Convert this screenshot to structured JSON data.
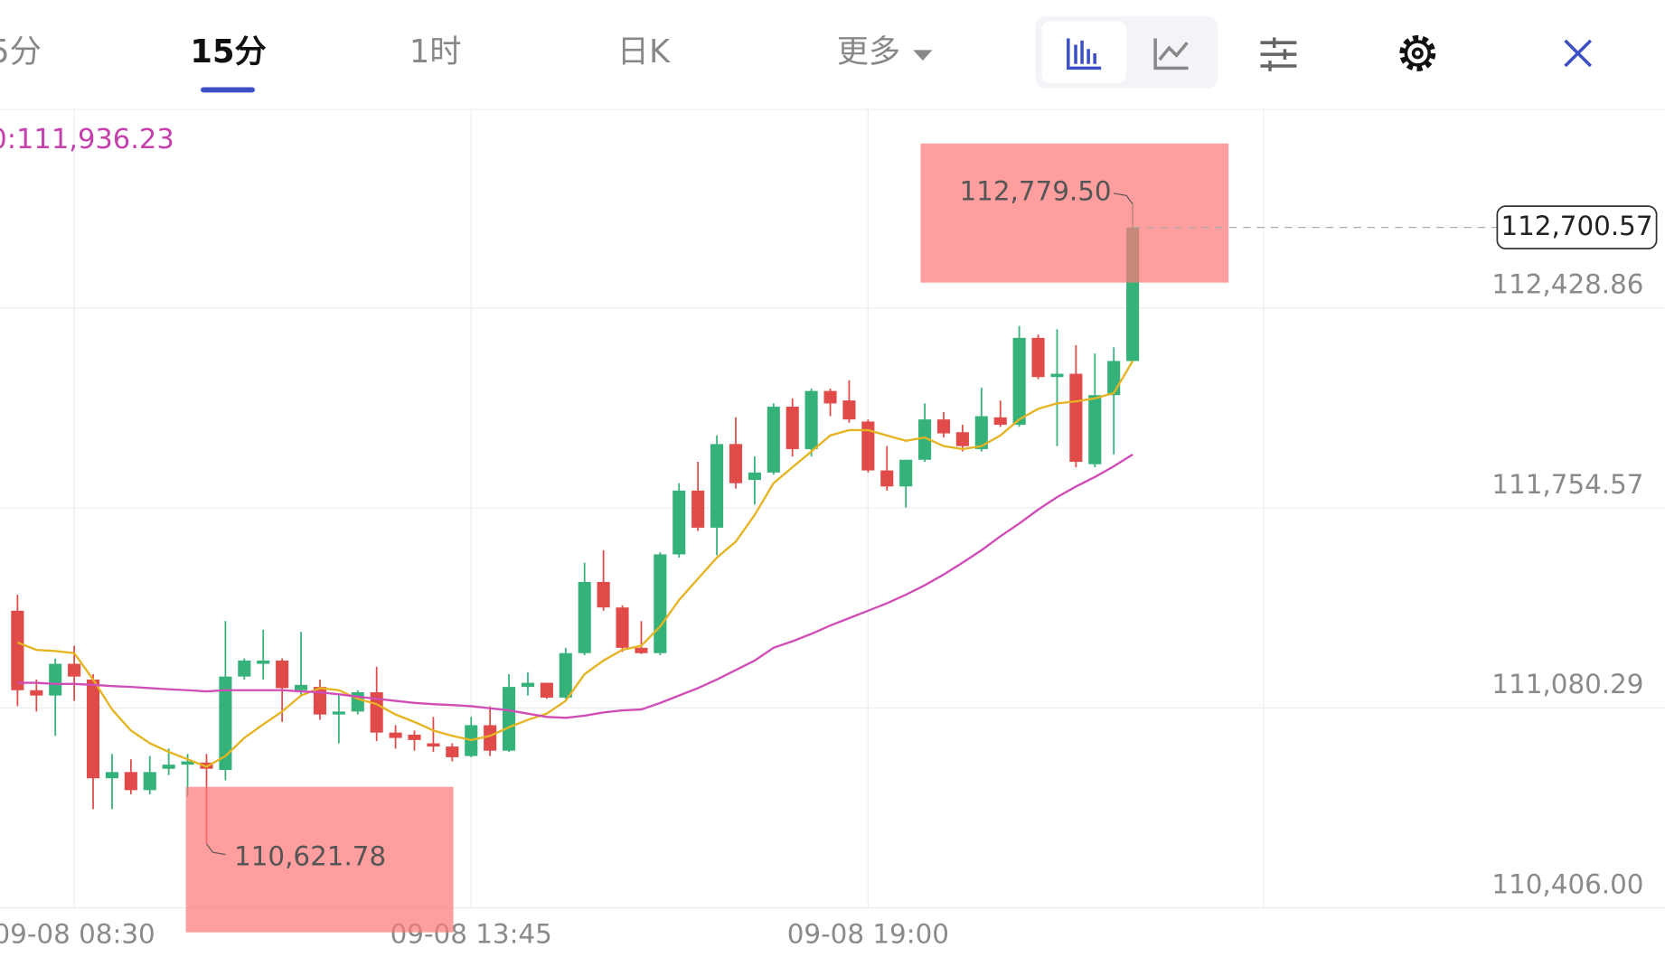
{
  "tabs": [
    "5分",
    "15分",
    "1时",
    "日K",
    "更多"
  ],
  "chart_data": {
    "type": "candlestick",
    "ma_label": "0:111,936.23",
    "categories": [
      null,
      null,
      null,
      "09-08 08:30",
      null,
      null,
      null,
      null,
      null,
      null,
      null,
      null,
      null,
      null,
      null,
      null,
      null,
      null,
      null,
      null,
      null,
      null,
      null,
      null,
      "09-08 13:45",
      null,
      null,
      null,
      null,
      null,
      null,
      null,
      null,
      null,
      null,
      null,
      null,
      null,
      null,
      null,
      null,
      null,
      null,
      null,
      null,
      "09-08 19:00",
      null,
      null,
      null,
      null,
      null,
      null,
      null,
      null,
      null,
      null,
      null,
      null,
      null,
      null
    ],
    "open": [
      111408,
      111140,
      111122,
      111229,
      111176,
      110843,
      110864,
      110803,
      110875,
      110889,
      110896,
      110871,
      111186,
      111229,
      111240,
      111140,
      111151,
      111058,
      111068,
      111133,
      110997,
      110990,
      110961,
      110950,
      110918,
      111022,
      110936,
      111151,
      111165,
      111115,
      111265,
      111505,
      111419,
      111283,
      111265,
      111598,
      111813,
      111688,
      111970,
      111849,
      111874,
      112096,
      111953,
      112149,
      112117,
      112046,
      111881,
      111827,
      111917,
      112053,
      112010,
      111953,
      112060,
      112035,
      112328,
      112196,
      112207,
      111902,
      112135,
      112250
    ],
    "high": [
      111462,
      111176,
      111247,
      111290,
      111194,
      110925,
      110907,
      110918,
      110943,
      110925,
      110925,
      111373,
      111247,
      111344,
      111247,
      111337,
      111176,
      111122,
      111140,
      111219,
      111022,
      111004,
      111050,
      110961,
      111050,
      111086,
      111194,
      111201,
      111165,
      111283,
      111570,
      111612,
      111426,
      111373,
      111605,
      111838,
      111910,
      111999,
      112060,
      111928,
      112107,
      112124,
      112157,
      112157,
      112185,
      112053,
      111963,
      111917,
      112107,
      112078,
      112035,
      112160,
      112117,
      112368,
      112339,
      112357,
      112303,
      112275,
      112296,
      112779.5
    ],
    "low": [
      111086,
      111068,
      110986,
      111104,
      110739,
      110739,
      110789,
      110789,
      110854,
      110782,
      110621.78,
      110836,
      111176,
      111176,
      111033,
      111122,
      111040,
      110961,
      111058,
      110968,
      110943,
      110936,
      110932,
      110900,
      110914,
      110918,
      110932,
      111122,
      111111,
      111111,
      111258,
      111408,
      111269,
      111262,
      111258,
      111587,
      111677,
      111595,
      111820,
      111766,
      111867,
      111928,
      111928,
      112064,
      112042,
      111874,
      111813,
      111756,
      111910,
      111992,
      111945,
      111945,
      112028,
      112028,
      112189,
      111963,
      111892,
      111892,
      111935,
      112250
    ],
    "close": [
      111140,
      111122,
      111229,
      111186,
      110843,
      110864,
      110803,
      110864,
      110889,
      110900,
      110875,
      111186,
      111240,
      111240,
      111147,
      111158,
      111058,
      111068,
      111133,
      110997,
      110979,
      110972,
      110950,
      110914,
      111022,
      110936,
      111151,
      111165,
      111115,
      111265,
      111505,
      111419,
      111283,
      111265,
      111598,
      111813,
      111688,
      111970,
      111838,
      111874,
      112096,
      111953,
      112149,
      112107,
      112053,
      111881,
      111827,
      111917,
      112053,
      112006,
      111963,
      112064,
      112035,
      112328,
      112196,
      112207,
      111910,
      112135,
      112250,
      112700.57
    ],
    "up_color": "#35b27a",
    "down_color": "#e04a48",
    "series": [
      {
        "color": "#e6b422",
        "values": [
          111301,
          111276,
          111272,
          111265,
          111176,
          111075,
          111004,
          110961,
          110932,
          110907,
          110882,
          110918,
          110979,
          111025,
          111068,
          111122,
          111147,
          111140,
          111111,
          111093,
          111058,
          111033,
          111004,
          110986,
          110972,
          110986,
          111015,
          111040,
          111061,
          111104,
          111194,
          111240,
          111276,
          111290,
          111355,
          111444,
          111516,
          111587,
          111641,
          111731,
          111838,
          111892,
          111945,
          111999,
          112017,
          112017,
          111999,
          111981,
          111992,
          111963,
          111953,
          111963,
          111999,
          112053,
          112089,
          112107,
          112114,
          112124,
          112142,
          112250
        ]
      },
      {
        "color": "#d04cb6",
        "values": [
          111165,
          111165,
          111161,
          111161,
          111158,
          111154,
          111151,
          111147,
          111143,
          111140,
          111136,
          111140,
          111140,
          111140,
          111140,
          111136,
          111133,
          111126,
          111118,
          111111,
          111104,
          111097,
          111093,
          111090,
          111086,
          111079,
          111072,
          111061,
          111050,
          111047,
          111054,
          111065,
          111072,
          111075,
          111097,
          111122,
          111147,
          111176,
          111208,
          111240,
          111283,
          111305,
          111330,
          111358,
          111383,
          111408,
          111433,
          111462,
          111494,
          111530,
          111570,
          111612,
          111659,
          111702,
          111749,
          111791,
          111827,
          111859,
          111895,
          111935
        ]
      }
    ],
    "max_label": "112,779.50",
    "min_label": "110,621.78",
    "last_label": "112,700.57",
    "ylim": [
      110406,
      113098
    ],
    "yticks": [
      {
        "value": 110406.0,
        "label": "110,406.00"
      },
      {
        "value": 111080.29,
        "label": "111,080.29"
      },
      {
        "value": 111754.57,
        "label": "111,754.57"
      },
      {
        "value": 112428.86,
        "label": "112,428.86"
      }
    ],
    "grid": true
  }
}
